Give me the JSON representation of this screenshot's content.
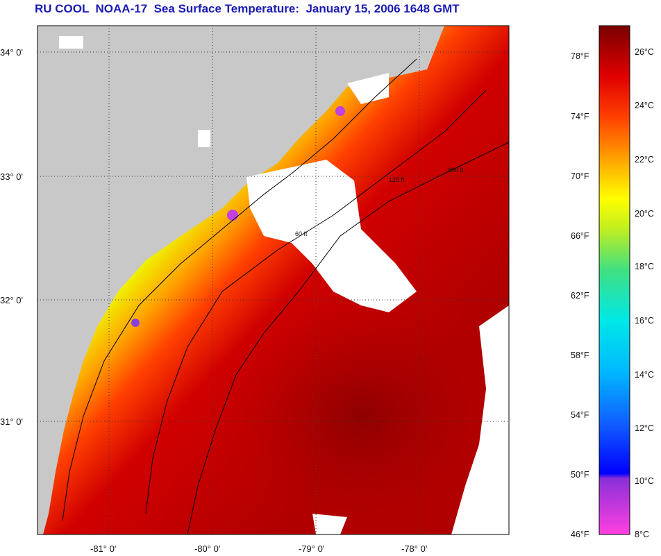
{
  "title": "RU COOL  NOAA-17  Sea Surface Temperature:  January 15, 2006 1648 GMT",
  "lat_labels": [
    "34° 0'",
    "33° 0'",
    "32° 0'",
    "31° 0'"
  ],
  "lon_labels": [
    "-81° 0'",
    "-80° 0'",
    "-79° 0'",
    "-78° 0'"
  ],
  "contours": [
    "60 ft",
    "120 ft",
    "600 ft"
  ],
  "colorbar": {
    "fahrenheit": [
      "78°F",
      "74°F",
      "70°F",
      "66°F",
      "62°F",
      "58°F",
      "54°F",
      "50°F",
      "46°F"
    ],
    "celsius": [
      "26°C",
      "24°C",
      "22°C",
      "20°C",
      "18°C",
      "16°C",
      "14°C",
      "12°C",
      "10°C",
      "8°C"
    ]
  },
  "colors": {
    "land": "#c8c8c8",
    "title": "#1a1ab4",
    "cold": "#ff40c0",
    "warm": "#7a0000"
  }
}
